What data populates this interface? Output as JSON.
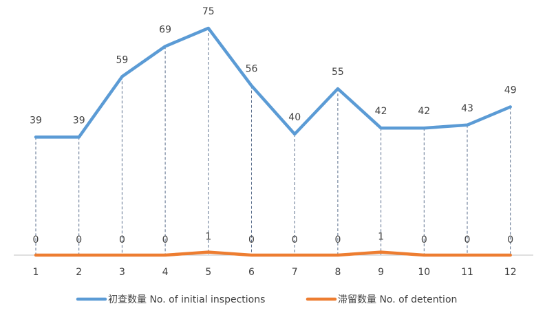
{
  "chart_data": {
    "type": "line",
    "categories": [
      "1",
      "2",
      "3",
      "4",
      "5",
      "6",
      "7",
      "8",
      "9",
      "10",
      "11",
      "12"
    ],
    "series": [
      {
        "name": "初查数量 No. of initial inspections",
        "values": [
          39,
          39,
          59,
          69,
          75,
          56,
          40,
          55,
          42,
          42,
          43,
          49
        ],
        "color": "#5b9bd5"
      },
      {
        "name": "滞留数量 No. of detention",
        "values": [
          0,
          0,
          0,
          0,
          1,
          0,
          0,
          0,
          1,
          0,
          0,
          0
        ],
        "color": "#ed7d31"
      }
    ],
    "ylim": [
      0,
      79
    ],
    "grid": false,
    "drop_lines": true,
    "data_labels": true,
    "legend_position": "bottom"
  }
}
